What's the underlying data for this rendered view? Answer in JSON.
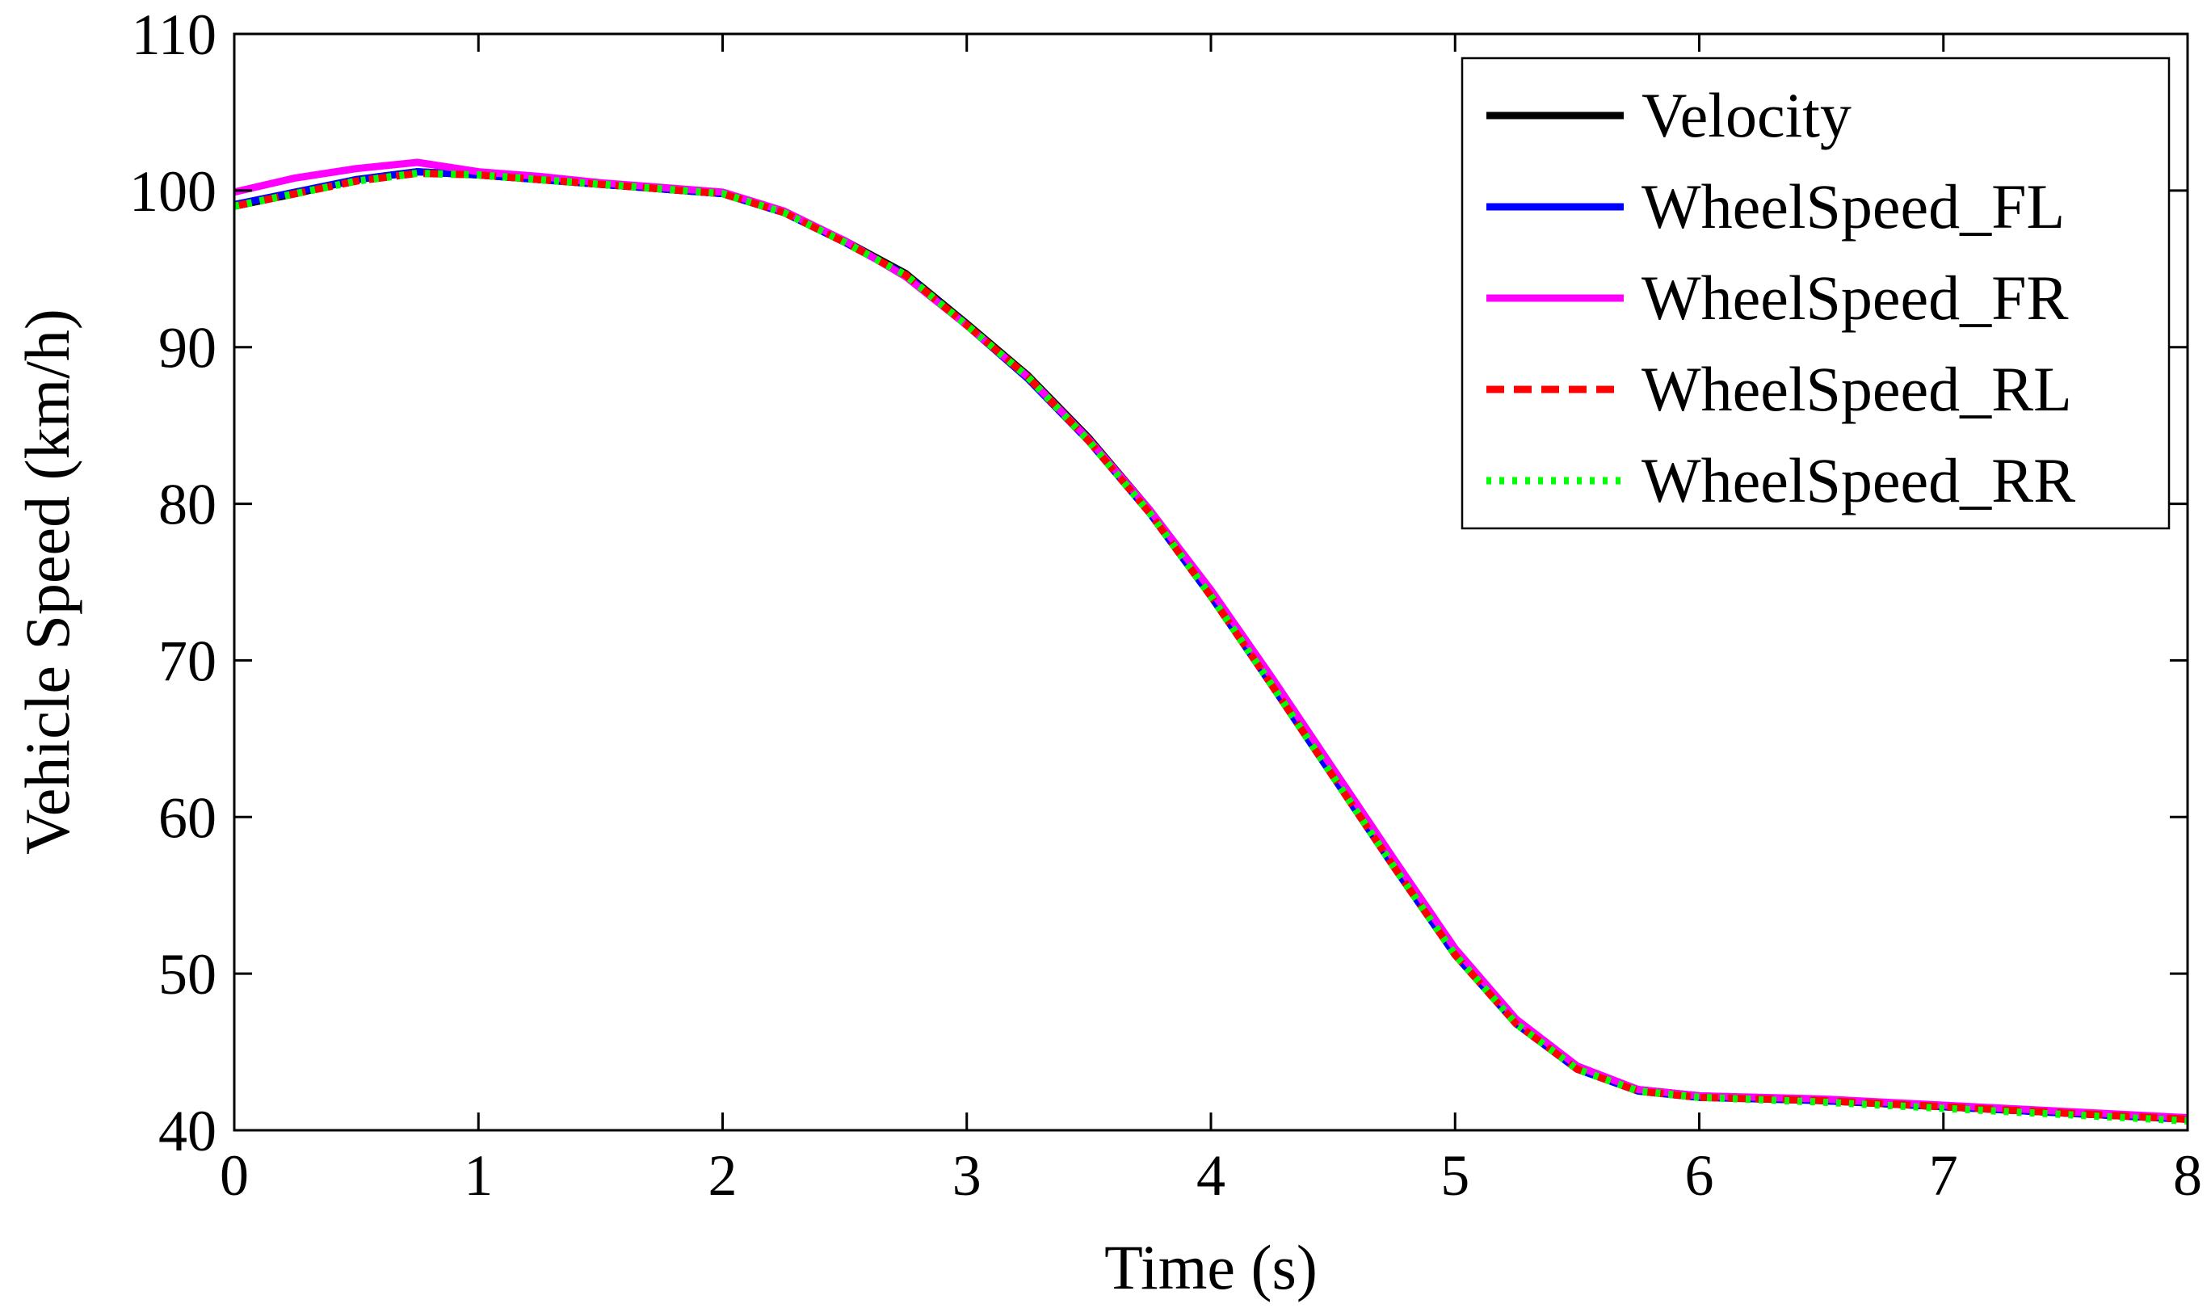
{
  "chart_data": {
    "type": "line",
    "title": "",
    "xlabel": "Time (s)",
    "ylabel": "Vehicle Speed (km/h)",
    "xlim": [
      0,
      8
    ],
    "ylim": [
      40,
      110
    ],
    "xticks": [
      0,
      1,
      2,
      3,
      4,
      5,
      6,
      7,
      8
    ],
    "yticks": [
      40,
      50,
      60,
      70,
      80,
      90,
      100,
      110
    ],
    "grid": false,
    "legend_position": "top-right",
    "x": [
      0,
      0.25,
      0.5,
      0.75,
      1,
      1.25,
      1.5,
      1.75,
      2,
      2.25,
      2.5,
      2.75,
      3,
      3.25,
      3.5,
      3.75,
      4,
      4.25,
      4.5,
      4.75,
      5,
      5.25,
      5.5,
      5.75,
      6,
      6.5,
      7,
      7.5,
      8
    ],
    "series": [
      {
        "name": "Velocity",
        "color": "#000000",
        "style": "solid",
        "values": [
          99.0,
          99.8,
          100.7,
          101.2,
          101.0,
          100.7,
          100.4,
          100.1,
          99.8,
          98.6,
          96.8,
          94.7,
          91.5,
          88.2,
          84.2,
          79.6,
          74.3,
          68.6,
          62.8,
          57.0,
          51.4,
          47.0,
          44.0,
          42.6,
          42.2,
          41.9,
          41.5,
          41.1,
          40.7
        ]
      },
      {
        "name": "WheelSpeed_FL",
        "color": "#0000ff",
        "style": "solid",
        "values": [
          99.1,
          99.9,
          100.7,
          101.2,
          101.0,
          100.7,
          100.4,
          100.1,
          99.8,
          98.6,
          96.7,
          94.6,
          91.4,
          88.0,
          84.0,
          79.4,
          74.1,
          68.4,
          62.6,
          56.8,
          51.2,
          46.8,
          43.9,
          42.5,
          42.1,
          41.9,
          41.5,
          41.1,
          40.7
        ]
      },
      {
        "name": "WheelSpeed_FR",
        "color": "#ff00ff",
        "style": "solid",
        "values": [
          99.9,
          100.8,
          101.4,
          101.8,
          101.2,
          100.9,
          100.5,
          100.2,
          99.9,
          98.7,
          96.8,
          94.5,
          91.4,
          88.1,
          84.1,
          79.6,
          74.5,
          68.9,
          63.1,
          57.3,
          51.6,
          47.1,
          44.1,
          42.6,
          42.2,
          42.0,
          41.6,
          41.2,
          40.8
        ]
      },
      {
        "name": "WheelSpeed_RL",
        "color": "#ff0000",
        "style": "dashed",
        "values": [
          99.0,
          99.8,
          100.6,
          101.1,
          101.0,
          100.7,
          100.4,
          100.1,
          99.8,
          98.6,
          96.7,
          94.6,
          91.4,
          88.1,
          84.0,
          79.4,
          74.1,
          68.4,
          62.6,
          56.8,
          51.2,
          46.8,
          43.9,
          42.5,
          42.1,
          41.9,
          41.5,
          41.1,
          40.7
        ]
      },
      {
        "name": "WheelSpeed_RR",
        "color": "#00ff00",
        "style": "dotted",
        "values": [
          99.0,
          99.8,
          100.6,
          101.1,
          101.0,
          100.7,
          100.4,
          100.1,
          99.8,
          98.6,
          96.7,
          94.6,
          91.4,
          88.1,
          84.0,
          79.4,
          74.1,
          68.4,
          62.6,
          56.8,
          51.2,
          46.8,
          43.9,
          42.5,
          42.1,
          41.8,
          41.4,
          41.0,
          40.6
        ]
      }
    ]
  }
}
